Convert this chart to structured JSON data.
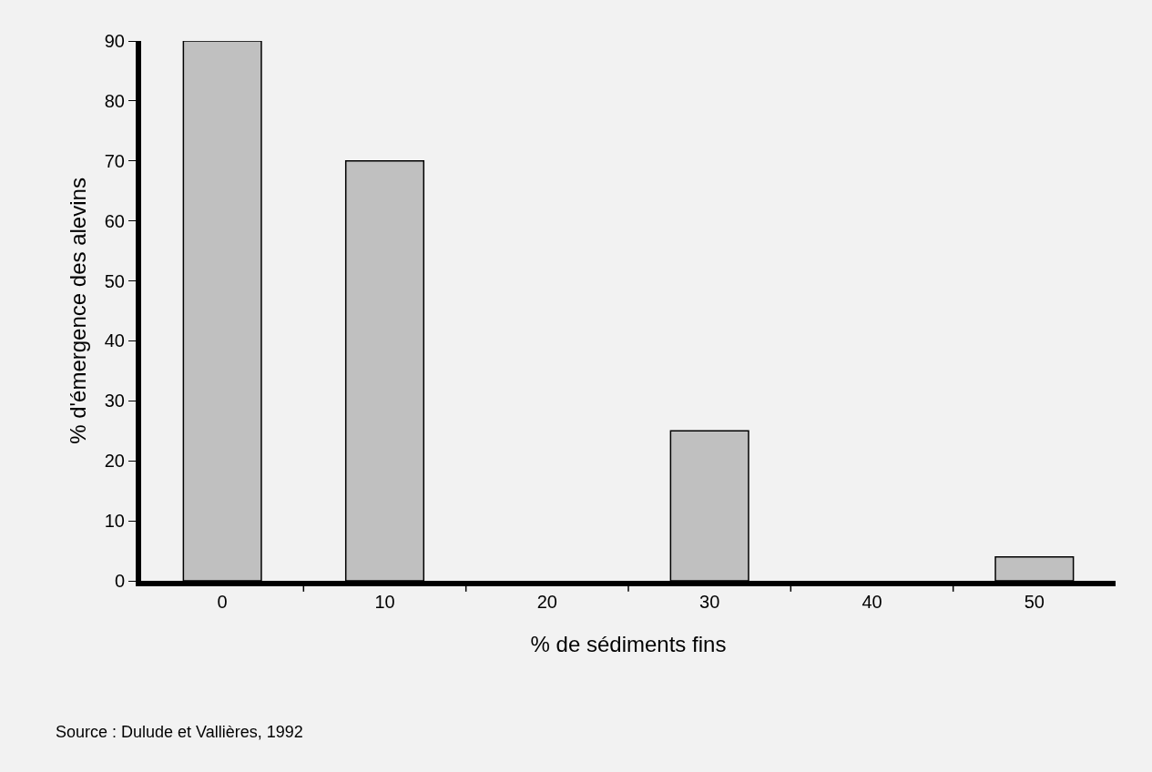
{
  "chart_data": {
    "type": "bar",
    "xlabel": "% de sédiments fins",
    "ylabel": "% d'émergence des alevins",
    "categories": [
      "0",
      "10",
      "20",
      "30",
      "40",
      "50"
    ],
    "values": [
      90,
      70,
      0,
      25,
      0,
      4
    ],
    "color": "#c0c0c0",
    "ylim": [
      0,
      90
    ],
    "yticks": [
      0,
      10,
      20,
      30,
      40,
      50,
      60,
      70,
      80,
      90
    ],
    "grid": false,
    "annotations": [
      "Source : Dulude et Vallières, 1992"
    ]
  }
}
